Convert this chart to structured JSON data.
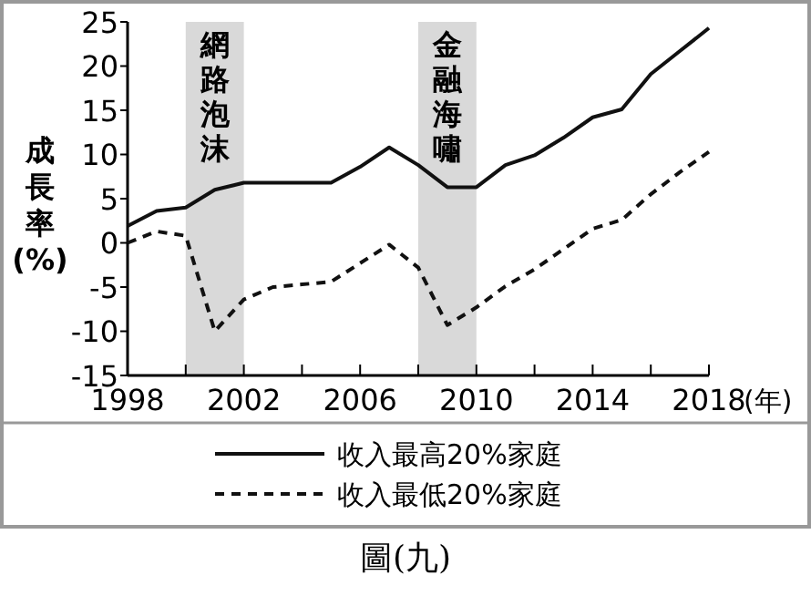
{
  "chart_data": {
    "type": "line",
    "xlabel": "(年)",
    "ylabel": "成長率(%)",
    "x": [
      1998,
      1999,
      2000,
      2001,
      2002,
      2003,
      2004,
      2005,
      2006,
      2007,
      2008,
      2009,
      2010,
      2011,
      2012,
      2013,
      2014,
      2015,
      2016,
      2017,
      2018
    ],
    "series": [
      {
        "name": "收入最高20%家庭",
        "color": "#111111",
        "line_style": "solid",
        "values": [
          1.9,
          3.6,
          4.0,
          6.0,
          6.8,
          6.8,
          6.8,
          6.8,
          8.6,
          10.8,
          8.8,
          6.3,
          6.3,
          8.8,
          9.9,
          11.9,
          14.2,
          15.1,
          19.1,
          21.7,
          24.3
        ]
      },
      {
        "name": "收入最低20%家庭",
        "color": "#111111",
        "line_style": "dashed",
        "values": [
          0,
          1.3,
          0.8,
          -10.0,
          -6.4,
          -5.0,
          -4.7,
          -4.4,
          -2.3,
          -0.2,
          -2.8,
          -9.3,
          -7.3,
          -4.9,
          -3.0,
          -0.7,
          1.6,
          2.6,
          5.5,
          8.0,
          10.3
        ]
      }
    ],
    "xlim": [
      1998,
      2018
    ],
    "xticks": [
      1998,
      {
        "value": 2000,
        "label": null
      },
      2002,
      {
        "value": 2004,
        "label": null
      },
      2006,
      {
        "value": 2008,
        "label": null
      },
      2010,
      {
        "value": 2012,
        "label": null
      },
      2014,
      {
        "value": 2016,
        "label": null
      },
      2018
    ],
    "ylim": [
      -15,
      25
    ],
    "yticks": [
      -15,
      -10,
      -5,
      0,
      5,
      10,
      15,
      20,
      25
    ],
    "bands": [
      {
        "axis": "x",
        "from": 2000,
        "to": 2002,
        "label": "網路泡沫",
        "color": "#d9d9d9"
      },
      {
        "axis": "x",
        "from": 2008,
        "to": 2010,
        "label": "金融海嘯",
        "color": "#d9d9d9"
      }
    ],
    "grid": false,
    "legend": "bottom",
    "marker": "none",
    "annotations": [
      "圖(九)"
    ]
  }
}
